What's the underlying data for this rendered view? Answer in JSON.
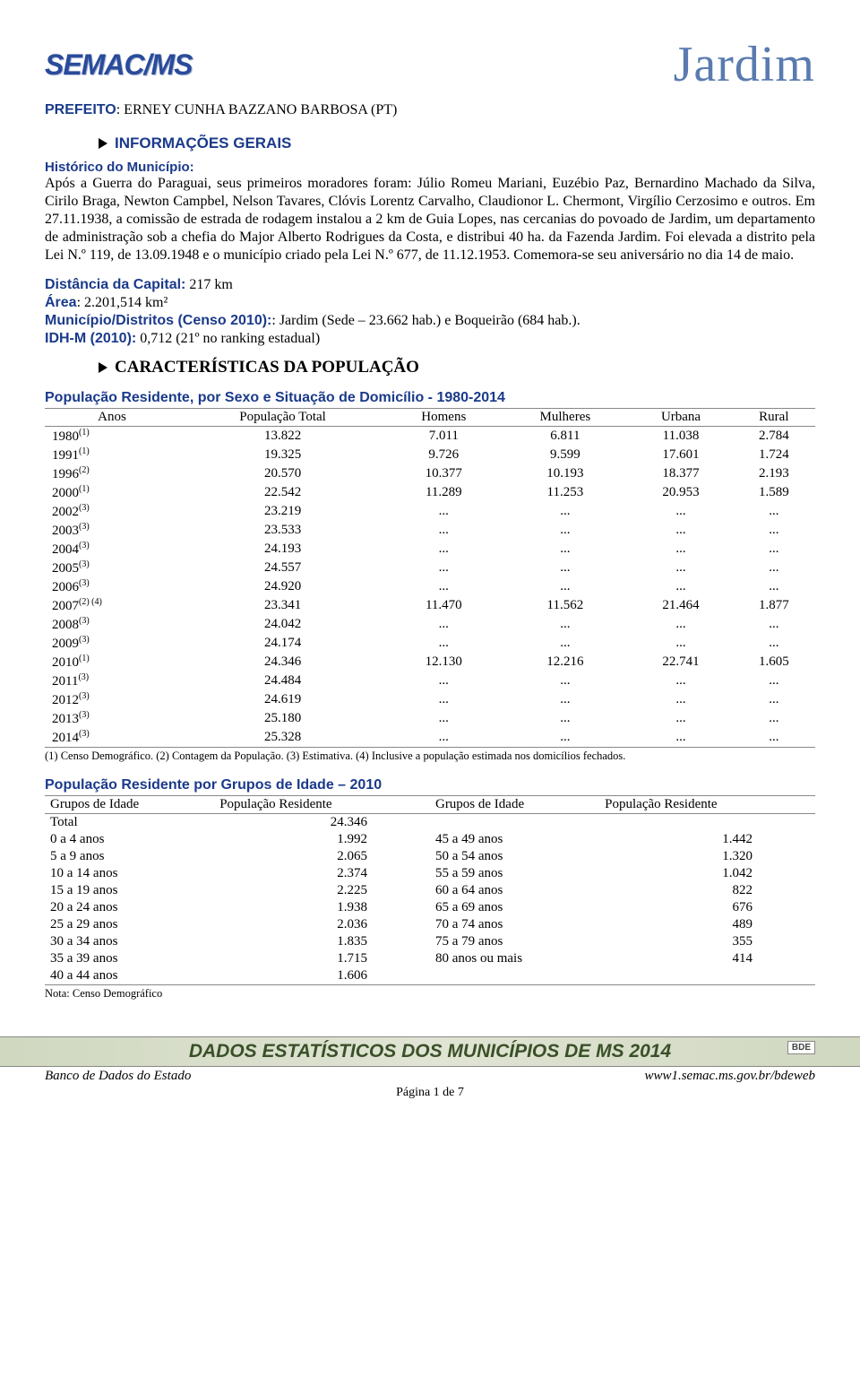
{
  "header": {
    "logo_left": "SEMAC/MS",
    "logo_right": "Jardim"
  },
  "prefeito": {
    "label": "PREFEITO",
    "value": ": ERNEY CUNHA BAZZANO BARBOSA (PT)"
  },
  "section_info_gerais": "INFORMAÇÕES GERAIS",
  "historico": {
    "title": "Histórico do Município:",
    "text": "Após a Guerra do Paraguai, seus primeiros moradores foram: Júlio Romeu Mariani, Euzébio Paz, Bernardino Machado da Silva, Cirilo Braga, Newton Campbel, Nelson Tavares, Clóvis Lorentz Carvalho, Claudionor L. Chermont, Virgílio Cerzosimo e outros. Em 27.11.1938, a comissão de estrada de rodagem instalou a 2 km de Guia Lopes, nas cercanias do povoado de Jardim, um departamento de administração sob a chefia do Major Alberto Rodrigues da Costa, e distribui 40 ha. da Fazenda Jardim. Foi elevada a distrito pela Lei N.º 119, de 13.09.1948 e o município criado pela Lei N.º 677, de 11.12.1953. Comemora-se seu aniversário no dia 14 de maio."
  },
  "geral": {
    "distancia_label": "Distância da Capital:",
    "distancia_value": " 217 km",
    "area_label": "Área",
    "area_value": ": 2.201,514 km²",
    "municipio_label": "Município/Distritos (Censo 2010):",
    "municipio_value": ": Jardim (Sede – 23.662 hab.) e Boqueirão (684 hab.).",
    "idh_label": "IDH-M (2010):",
    "idh_value": " 0,712 (21º no ranking estadual)"
  },
  "section_caract": "CARACTERÍSTICAS DA POPULAÇÃO",
  "pop_table": {
    "title": "População Residente, por Sexo e Situação de Domicílio - 1980-2014",
    "columns": [
      "Anos",
      "População Total",
      "Homens",
      "Mulheres",
      "Urbana",
      "Rural"
    ],
    "rows": [
      {
        "year": "1980",
        "sup": "(1)",
        "total": "13.822",
        "h": "7.011",
        "m": "6.811",
        "u": "11.038",
        "r": "2.784"
      },
      {
        "year": "1991",
        "sup": "(1)",
        "total": "19.325",
        "h": "9.726",
        "m": "9.599",
        "u": "17.601",
        "r": "1.724"
      },
      {
        "year": "1996",
        "sup": "(2)",
        "total": "20.570",
        "h": "10.377",
        "m": "10.193",
        "u": "18.377",
        "r": "2.193"
      },
      {
        "year": "2000",
        "sup": "(1)",
        "total": "22.542",
        "h": "11.289",
        "m": "11.253",
        "u": "20.953",
        "r": "1.589"
      },
      {
        "year": "2002",
        "sup": "(3)",
        "total": "23.219",
        "h": "...",
        "m": "...",
        "u": "...",
        "r": "..."
      },
      {
        "year": "2003",
        "sup": "(3)",
        "total": "23.533",
        "h": "...",
        "m": "...",
        "u": "...",
        "r": "..."
      },
      {
        "year": "2004",
        "sup": "(3)",
        "total": "24.193",
        "h": "...",
        "m": "...",
        "u": "...",
        "r": "..."
      },
      {
        "year": "2005",
        "sup": "(3)",
        "total": "24.557",
        "h": "...",
        "m": "...",
        "u": "...",
        "r": "..."
      },
      {
        "year": "2006",
        "sup": "(3)",
        "total": "24.920",
        "h": "...",
        "m": "...",
        "u": "...",
        "r": "..."
      },
      {
        "year": "2007",
        "sup": "(2) (4)",
        "total": "23.341",
        "h": "11.470",
        "m": "11.562",
        "u": "21.464",
        "r": "1.877"
      },
      {
        "year": "2008",
        "sup": "(3)",
        "total": "24.042",
        "h": "...",
        "m": "...",
        "u": "...",
        "r": "..."
      },
      {
        "year": "2009",
        "sup": "(3)",
        "total": "24.174",
        "h": "...",
        "m": "...",
        "u": "...",
        "r": "..."
      },
      {
        "year": "2010",
        "sup": "(1)",
        "total": "24.346",
        "h": "12.130",
        "m": "12.216",
        "u": "22.741",
        "r": "1.605"
      },
      {
        "year": "2011",
        "sup": "(3)",
        "total": "24.484",
        "h": "...",
        "m": "...",
        "u": "...",
        "r": "..."
      },
      {
        "year": "2012",
        "sup": "(3)",
        "total": "24.619",
        "h": "...",
        "m": "...",
        "u": "...",
        "r": "..."
      },
      {
        "year": "2013",
        "sup": "(3)",
        "total": "25.180",
        "h": "...",
        "m": "...",
        "u": "...",
        "r": "..."
      },
      {
        "year": "2014",
        "sup": "(3)",
        "total": "25.328",
        "h": "...",
        "m": "...",
        "u": "...",
        "r": "..."
      }
    ],
    "footnote": "(1) Censo Demográfico. (2) Contagem da População. (3) Estimativa. (4) Inclusive a população estimada nos domicílios fechados."
  },
  "age_table": {
    "title": "População Residente por Grupos de Idade – 2010",
    "col1": "Grupos de Idade",
    "col2": "População Residente",
    "col3": "Grupos de Idade",
    "col4": "População Residente",
    "rows": [
      {
        "g1": "Total",
        "v1": "24.346",
        "g2": "",
        "v2": ""
      },
      {
        "g1": "0 a 4 anos",
        "v1": "1.992",
        "g2": "45 a 49 anos",
        "v2": "1.442"
      },
      {
        "g1": "5 a 9 anos",
        "v1": "2.065",
        "g2": "50 a 54 anos",
        "v2": "1.320"
      },
      {
        "g1": "10 a 14 anos",
        "v1": "2.374",
        "g2": "55 a 59 anos",
        "v2": "1.042"
      },
      {
        "g1": "15 a 19 anos",
        "v1": "2.225",
        "g2": "60 a 64 anos",
        "v2": "822"
      },
      {
        "g1": "20 a 24 anos",
        "v1": "1.938",
        "g2": "65 a 69 anos",
        "v2": "676"
      },
      {
        "g1": "25 a 29 anos",
        "v1": "2.036",
        "g2": "70 a 74 anos",
        "v2": "489"
      },
      {
        "g1": "30 a 34 anos",
        "v1": "1.835",
        "g2": "75 a 79 anos",
        "v2": "355"
      },
      {
        "g1": "35 a 39 anos",
        "v1": "1.715",
        "g2": "80 anos ou mais",
        "v2": "414"
      },
      {
        "g1": "40 a 44 anos",
        "v1": "1.606",
        "g2": "",
        "v2": ""
      }
    ],
    "nota": "Nota: Censo Demográfico"
  },
  "footer": {
    "band": "DADOS ESTATÍSTICOS DOS MUNICÍPIOS DE MS 2014",
    "bde": "BDE",
    "left": "Banco de Dados do Estado",
    "right": "www1.semac.ms.gov.br/bdeweb",
    "page": "Página 1 de 7"
  }
}
